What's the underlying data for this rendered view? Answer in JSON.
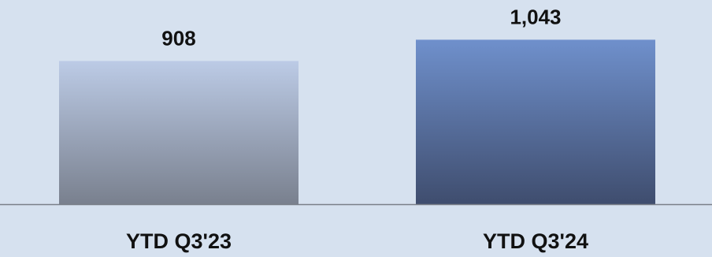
{
  "chart_data": {
    "type": "bar",
    "categories": [
      "YTD Q3'23",
      "YTD Q3'24"
    ],
    "values": [
      908,
      1043
    ],
    "data_labels": [
      "908",
      "1,043"
    ],
    "title": "",
    "xlabel": "",
    "ylabel": "",
    "ylim": [
      0,
      1200
    ],
    "grid": false,
    "legend": "none",
    "colors": {
      "background": "#d6e1ef",
      "bar_1_top": "#bccbe6",
      "bar_1_bottom": "#79808e",
      "bar_2_top": "#6f90cc",
      "bar_2_bottom": "#3f4d6e",
      "baseline": "#7a7f88"
    }
  }
}
